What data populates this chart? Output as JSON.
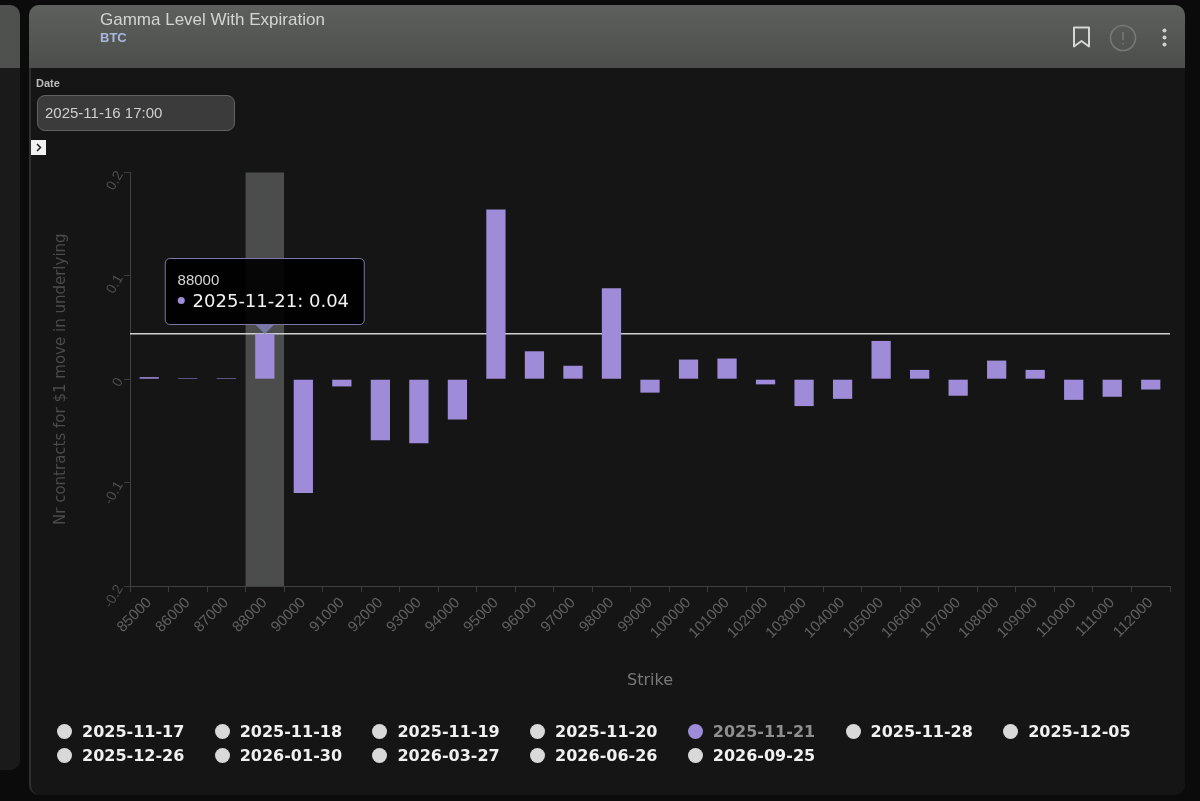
{
  "chart_data": {
    "type": "bar",
    "title": "Gamma Level With Expiration",
    "subtitle": "BTC",
    "xlabel": "Strike",
    "ylabel": "Nr contracts for $1 move in underlying",
    "categories": [
      "85000",
      "86000",
      "87000",
      "88000",
      "90000",
      "91000",
      "92000",
      "93000",
      "94000",
      "95000",
      "96000",
      "97000",
      "98000",
      "99000",
      "100000",
      "101000",
      "102000",
      "103000",
      "104000",
      "105000",
      "106000",
      "107000",
      "108000",
      "109000",
      "110000",
      "111000",
      "112000"
    ],
    "series": [
      {
        "name": "2025-11-17",
        "color": "#d9d9d9",
        "values": [
          null,
          null,
          null,
          null,
          null,
          null,
          null,
          null,
          null,
          null,
          null,
          null,
          null,
          null,
          null,
          null,
          null,
          null,
          null,
          null,
          null,
          null,
          null,
          null,
          null,
          null,
          null
        ]
      },
      {
        "name": "2025-11-18",
        "color": "#d9d9d9",
        "values": [
          null,
          null,
          null,
          null,
          null,
          null,
          null,
          null,
          null,
          null,
          null,
          null,
          null,
          null,
          null,
          null,
          null,
          null,
          null,
          null,
          null,
          null,
          null,
          null,
          null,
          null,
          null
        ]
      },
      {
        "name": "2025-11-19",
        "color": "#d9d9d9",
        "values": [
          null,
          null,
          null,
          null,
          null,
          null,
          null,
          null,
          null,
          null,
          null,
          null,
          null,
          null,
          null,
          null,
          null,
          null,
          null,
          null,
          null,
          null,
          null,
          null,
          null,
          null,
          null
        ]
      },
      {
        "name": "2025-11-20",
        "color": "#d9d9d9",
        "values": [
          null,
          null,
          null,
          null,
          null,
          null,
          null,
          null,
          null,
          null,
          null,
          null,
          null,
          null,
          null,
          null,
          null,
          null,
          null,
          null,
          null,
          null,
          null,
          null,
          null,
          null,
          null
        ]
      },
      {
        "name": "2025-11-21",
        "color": "#9e8cd8",
        "values": [
          0.002,
          0.001,
          0.001,
          0.044,
          -0.11,
          -0.007,
          -0.059,
          -0.062,
          -0.039,
          0.164,
          0.027,
          0.013,
          0.088,
          -0.013,
          0.019,
          0.02,
          -0.005,
          -0.026,
          -0.019,
          0.037,
          0.009,
          -0.016,
          0.018,
          0.009,
          -0.02,
          -0.017,
          -0.01
        ]
      },
      {
        "name": "2025-11-28",
        "color": "#d9d9d9",
        "values": [
          null,
          null,
          null,
          null,
          null,
          null,
          null,
          null,
          null,
          null,
          null,
          null,
          null,
          null,
          null,
          null,
          null,
          null,
          null,
          null,
          null,
          null,
          null,
          null,
          null,
          null,
          null
        ]
      },
      {
        "name": "2025-12-05",
        "color": "#d9d9d9",
        "values": [
          null,
          null,
          null,
          null,
          null,
          null,
          null,
          null,
          null,
          null,
          null,
          null,
          null,
          null,
          null,
          null,
          null,
          null,
          null,
          null,
          null,
          null,
          null,
          null,
          null,
          null,
          null
        ]
      },
      {
        "name": "2025-12-26",
        "color": "#d9d9d9",
        "values": [
          null,
          null,
          null,
          null,
          null,
          null,
          null,
          null,
          null,
          null,
          null,
          null,
          null,
          null,
          null,
          null,
          null,
          null,
          null,
          null,
          null,
          null,
          null,
          null,
          null,
          null,
          null
        ]
      },
      {
        "name": "2026-01-30",
        "color": "#d9d9d9",
        "values": [
          null,
          null,
          null,
          null,
          null,
          null,
          null,
          null,
          null,
          null,
          null,
          null,
          null,
          null,
          null,
          null,
          null,
          null,
          null,
          null,
          null,
          null,
          null,
          null,
          null,
          null,
          null
        ]
      },
      {
        "name": "2026-03-27",
        "color": "#d9d9d9",
        "values": [
          null,
          null,
          null,
          null,
          null,
          null,
          null,
          null,
          null,
          null,
          null,
          null,
          null,
          null,
          null,
          null,
          null,
          null,
          null,
          null,
          null,
          null,
          null,
          null,
          null,
          null,
          null
        ]
      },
      {
        "name": "2026-06-26",
        "color": "#d9d9d9",
        "values": [
          null,
          null,
          null,
          null,
          null,
          null,
          null,
          null,
          null,
          null,
          null,
          null,
          null,
          null,
          null,
          null,
          null,
          null,
          null,
          null,
          null,
          null,
          null,
          null,
          null,
          null,
          null
        ]
      },
      {
        "name": "2026-09-25",
        "color": "#d9d9d9",
        "values": [
          null,
          null,
          null,
          null,
          null,
          null,
          null,
          null,
          null,
          null,
          null,
          null,
          null,
          null,
          null,
          null,
          null,
          null,
          null,
          null,
          null,
          null,
          null,
          null,
          null,
          null,
          null
        ]
      }
    ],
    "ylim": [
      -0.2,
      0.2
    ],
    "yticks": [
      -0.2,
      -0.1,
      0,
      0.1,
      0.2
    ],
    "grid": false,
    "legend": "bottom",
    "ref_lines": [
      {
        "axis": "y",
        "value": 0.044,
        "color": "#cfcfcf"
      }
    ],
    "bands": [
      {
        "axis": "x",
        "from": "88000",
        "to": "88000",
        "color": "#4b4d4d"
      }
    ],
    "annotations": [
      "Date",
      "2025-11-16 17:00",
      {
        "text": "2025-11-21: 0.04",
        "x": "88000",
        "y": 0.044
      }
    ]
  }
}
